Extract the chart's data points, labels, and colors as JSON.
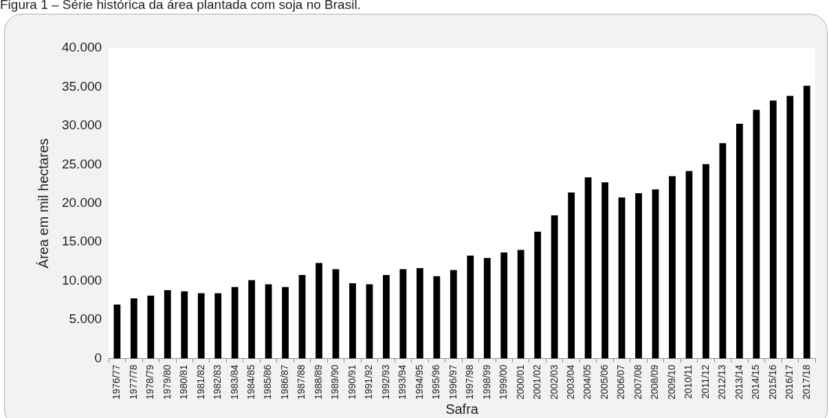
{
  "chart_data": {
    "type": "bar",
    "title": "Figura 1 – Série histórica da área plantada com soja no Brasil.",
    "xlabel": "Safra",
    "ylabel": "Área em mil hectares",
    "categories": [
      "1976/77",
      "1977/78",
      "1978/79",
      "1979/80",
      "1980/81",
      "1981/82",
      "1982/83",
      "1983/84",
      "1984/85",
      "1985/86",
      "1986/87",
      "1987/88",
      "1988/89",
      "1989/90",
      "1990/91",
      "1991/92",
      "1992/93",
      "1993/94",
      "1994/95",
      "1995/96",
      "1996/97",
      "1997/98",
      "1998/99",
      "1999/00",
      "2000/01",
      "2001/02",
      "2002/03",
      "2003/04",
      "2004/05",
      "2005/06",
      "2006/07",
      "2007/08",
      "2008/09",
      "2009/10",
      "2010/11",
      "2011/12",
      "2012/13",
      "2013/14",
      "2014/15",
      "2015/16",
      "2016/17",
      "2017/18"
    ],
    "values": [
      6950,
      7750,
      8100,
      8800,
      8650,
      8400,
      8400,
      9200,
      10100,
      9550,
      9200,
      10750,
      12300,
      11500,
      9700,
      9550,
      10750,
      11500,
      11650,
      10600,
      11400,
      13250,
      12950,
      13650,
      14000,
      16350,
      18450,
      21400,
      23350,
      22700,
      20750,
      21300,
      21800,
      23500,
      24150,
      25050,
      27750,
      30250,
      32050,
      33250,
      33850,
      35150
    ],
    "color": "#000000",
    "ylim": [
      0,
      40000
    ],
    "yticks": [
      {
        "value": 0,
        "label": "0"
      },
      {
        "value": 5000,
        "label": "5.000"
      },
      {
        "value": 10000,
        "label": "10.000"
      },
      {
        "value": 15000,
        "label": "15.000"
      },
      {
        "value": 20000,
        "label": "20.000"
      },
      {
        "value": 25000,
        "label": "25.000"
      },
      {
        "value": 30000,
        "label": "30.000"
      },
      {
        "value": 35000,
        "label": "35.000"
      },
      {
        "value": 40000,
        "label": "40.000"
      }
    ],
    "grid": false,
    "legend": false
  }
}
